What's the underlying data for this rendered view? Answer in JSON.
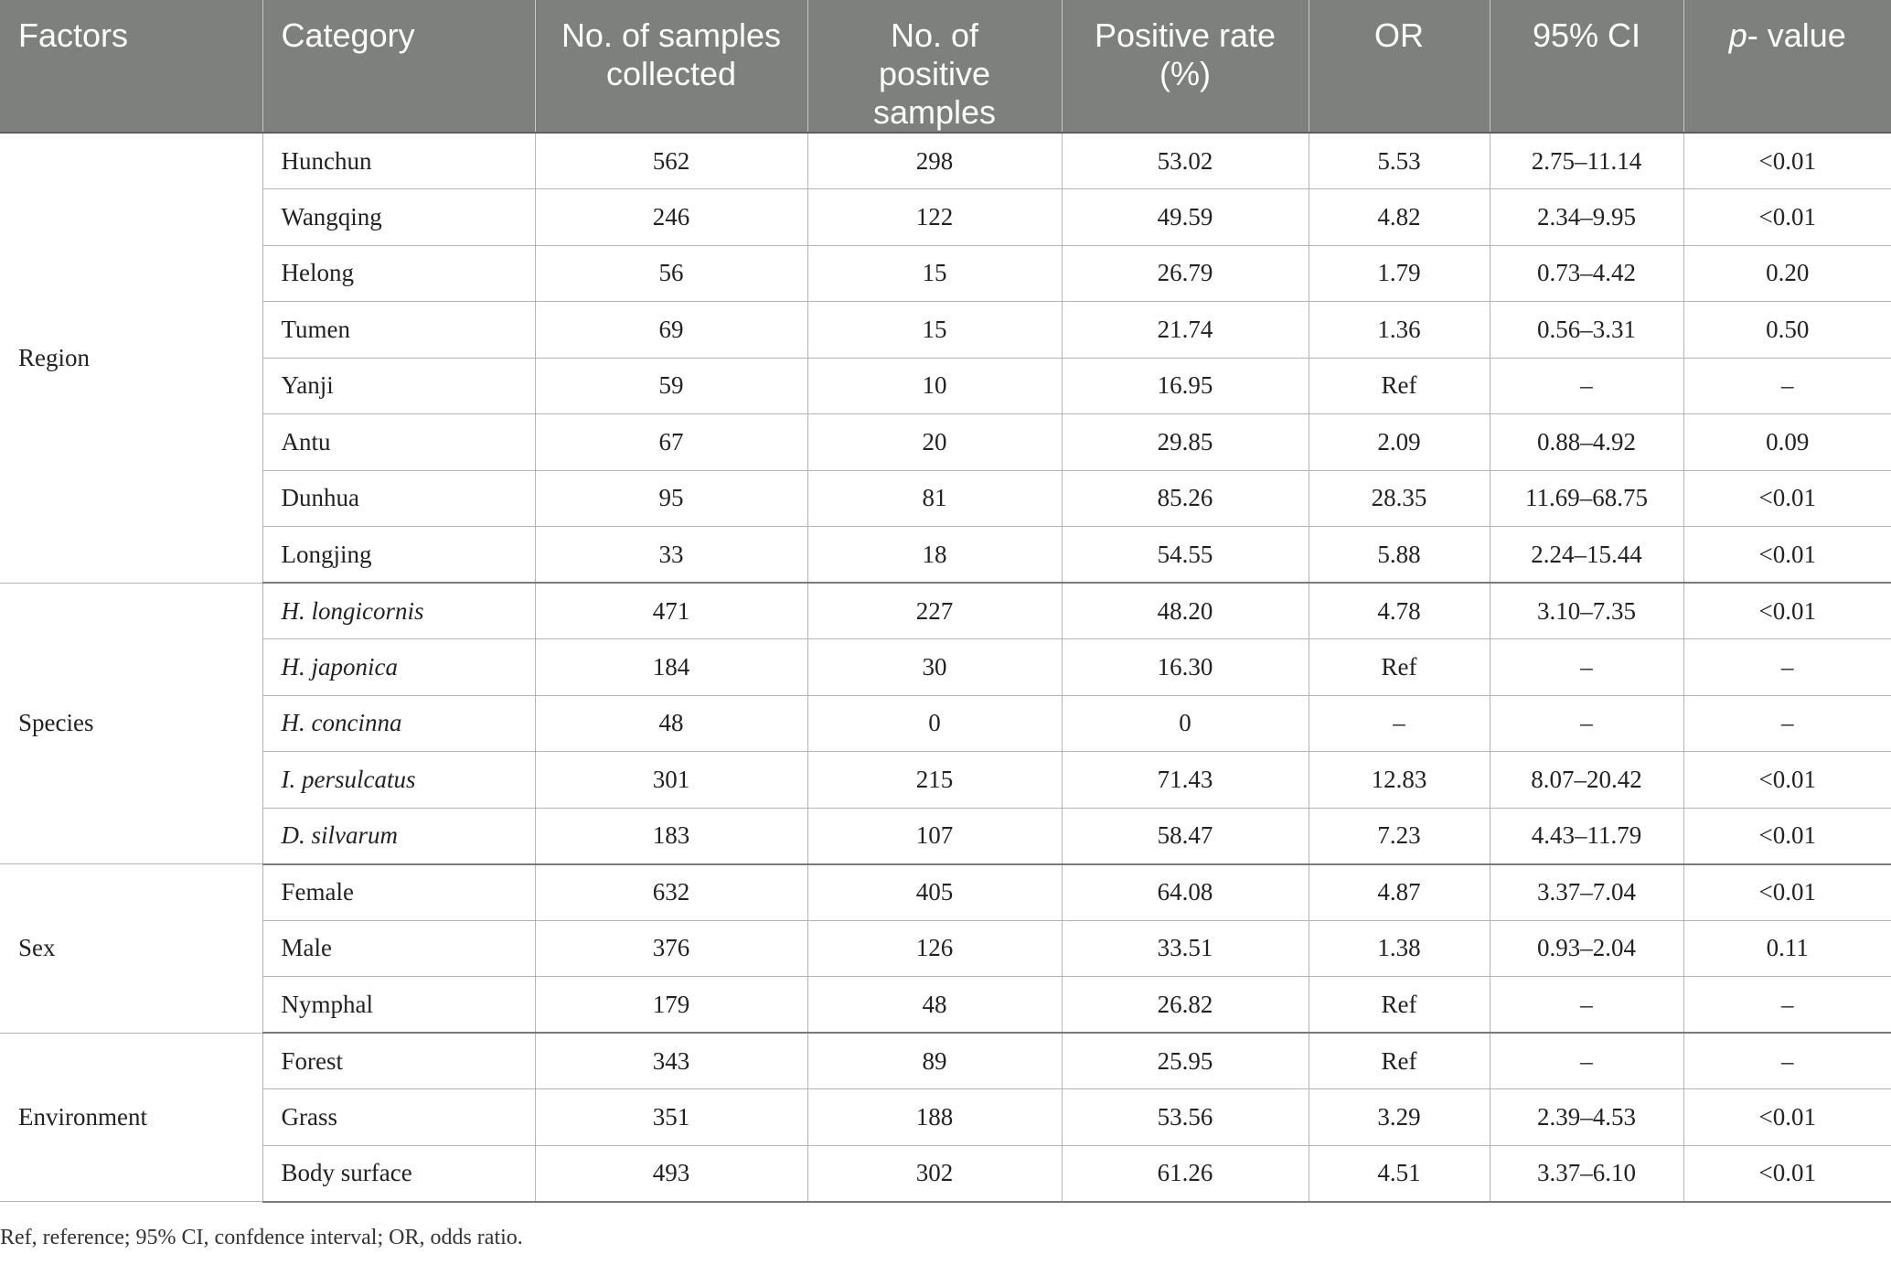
{
  "headers": {
    "factors": "Factors",
    "category": "Category",
    "samples_line1": "No. of samples",
    "samples_line2": "collected",
    "positive_line1": "No. of",
    "positive_line2": "positive",
    "positive_line3": "samples",
    "rate_line1": "Positive rate",
    "rate_line2": "(%)",
    "or": "OR",
    "ci": "95% CI",
    "p_italic": "p",
    "p_rest": "- value"
  },
  "groups": [
    {
      "factor": "Region",
      "rows": [
        {
          "category": "Hunchun",
          "italic": false,
          "samples": "562",
          "positive": "298",
          "rate": "53.02",
          "or": "5.53",
          "ci": "2.75–11.14",
          "p": "<0.01"
        },
        {
          "category": "Wangqing",
          "italic": false,
          "samples": "246",
          "positive": "122",
          "rate": "49.59",
          "or": "4.82",
          "ci": "2.34–9.95",
          "p": "<0.01"
        },
        {
          "category": "Helong",
          "italic": false,
          "samples": "56",
          "positive": "15",
          "rate": "26.79",
          "or": "1.79",
          "ci": "0.73–4.42",
          "p": "0.20"
        },
        {
          "category": "Tumen",
          "italic": false,
          "samples": "69",
          "positive": "15",
          "rate": "21.74",
          "or": "1.36",
          "ci": "0.56–3.31",
          "p": "0.50"
        },
        {
          "category": "Yanji",
          "italic": false,
          "samples": "59",
          "positive": "10",
          "rate": "16.95",
          "or": "Ref",
          "ci": "–",
          "p": "–"
        },
        {
          "category": "Antu",
          "italic": false,
          "samples": "67",
          "positive": "20",
          "rate": "29.85",
          "or": "2.09",
          "ci": "0.88–4.92",
          "p": "0.09"
        },
        {
          "category": "Dunhua",
          "italic": false,
          "samples": "95",
          "positive": "81",
          "rate": "85.26",
          "or": "28.35",
          "ci": "11.69–68.75",
          "p": "<0.01"
        },
        {
          "category": "Longjing",
          "italic": false,
          "samples": "33",
          "positive": "18",
          "rate": "54.55",
          "or": "5.88",
          "ci": "2.24–15.44",
          "p": "<0.01"
        }
      ]
    },
    {
      "factor": "Species",
      "rows": [
        {
          "category": "H. longicornis",
          "italic": true,
          "samples": "471",
          "positive": "227",
          "rate": "48.20",
          "or": "4.78",
          "ci": "3.10–7.35",
          "p": "<0.01"
        },
        {
          "category": "H. japonica",
          "italic": true,
          "samples": "184",
          "positive": "30",
          "rate": "16.30",
          "or": "Ref",
          "ci": "–",
          "p": "–"
        },
        {
          "category": "H. concinna",
          "italic": true,
          "samples": "48",
          "positive": "0",
          "rate": "0",
          "or": "–",
          "ci": "–",
          "p": "–"
        },
        {
          "category": "I. persulcatus",
          "italic": true,
          "samples": "301",
          "positive": "215",
          "rate": "71.43",
          "or": "12.83",
          "ci": "8.07–20.42",
          "p": "<0.01"
        },
        {
          "category": "D. silvarum",
          "italic": true,
          "samples": "183",
          "positive": "107",
          "rate": "58.47",
          "or": "7.23",
          "ci": "4.43–11.79",
          "p": "<0.01"
        }
      ]
    },
    {
      "factor": "Sex",
      "rows": [
        {
          "category": "Female",
          "italic": false,
          "samples": "632",
          "positive": "405",
          "rate": "64.08",
          "or": "4.87",
          "ci": "3.37–7.04",
          "p": "<0.01"
        },
        {
          "category": "Male",
          "italic": false,
          "samples": "376",
          "positive": "126",
          "rate": "33.51",
          "or": "1.38",
          "ci": "0.93–2.04",
          "p": "0.11"
        },
        {
          "category": "Nymphal",
          "italic": false,
          "samples": "179",
          "positive": "48",
          "rate": "26.82",
          "or": "Ref",
          "ci": "–",
          "p": "–"
        }
      ]
    },
    {
      "factor": "Environment",
      "rows": [
        {
          "category": "Forest",
          "italic": false,
          "samples": "343",
          "positive": "89",
          "rate": "25.95",
          "or": "Ref",
          "ci": "–",
          "p": "–"
        },
        {
          "category": "Grass",
          "italic": false,
          "samples": "351",
          "positive": "188",
          "rate": "53.56",
          "or": "3.29",
          "ci": "2.39–4.53",
          "p": "<0.01"
        },
        {
          "category": "Body surface",
          "italic": false,
          "samples": "493",
          "positive": "302",
          "rate": "61.26",
          "or": "4.51",
          "ci": "3.37–6.10",
          "p": "<0.01"
        }
      ]
    }
  ],
  "footnote": "Ref, reference; 95% CI, confdence interval; OR, odds ratio."
}
